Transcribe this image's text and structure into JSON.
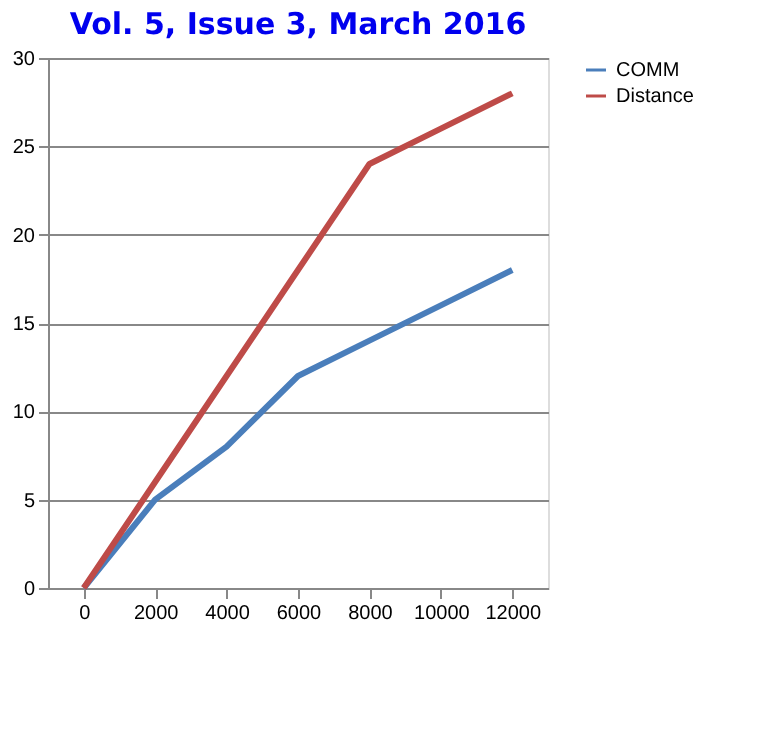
{
  "chart_data": {
    "type": "line",
    "title": "Vol. 5, Issue 3, March 2016",
    "categories": [
      "0",
      "2000",
      "4000",
      "6000",
      "8000",
      "10000",
      "12000"
    ],
    "series": [
      {
        "name": "COMM",
        "color": "#4a7ebb",
        "values": [
          0,
          5,
          8,
          12,
          14,
          16,
          18
        ]
      },
      {
        "name": "Distance",
        "color": "#be4b48",
        "values": [
          0,
          6,
          12,
          18,
          24,
          26,
          28
        ]
      }
    ],
    "ylim": [
      0,
      30
    ],
    "yticks": [
      0,
      5,
      10,
      15,
      20,
      25,
      30
    ],
    "grid": "y",
    "legend": "right",
    "marker": "none",
    "line_style": "solid"
  }
}
